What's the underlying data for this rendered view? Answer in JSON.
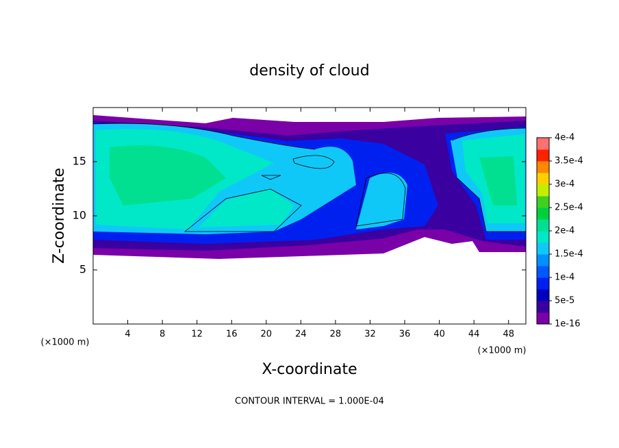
{
  "chart_data": {
    "type": "contour",
    "title": "density of cloud",
    "x_label": "X-coordinate",
    "y_label": "Z-coordinate",
    "x_unit": "(×1000 m)",
    "y_unit": "(×1000 m)",
    "note": "CONTOUR INTERVAL = 1.000E-04",
    "xlim": [
      0,
      50
    ],
    "ylim": [
      0,
      20
    ],
    "xticks": [
      4,
      8,
      12,
      16,
      20,
      24,
      28,
      32,
      36,
      40,
      44,
      48
    ],
    "yticks": [
      5,
      10,
      15
    ],
    "colorbar": {
      "lim": [
        1e-16,
        0.0004
      ],
      "ticks": [
        1e-16,
        {
          "value": 5e-05,
          "label": "5e-5"
        },
        {
          "value": 0.0001,
          "label": "1e-4"
        },
        {
          "value": 0.00015,
          "label": "1.5e-4"
        },
        {
          "value": 0.0002,
          "label": "2e-4"
        },
        {
          "value": 0.00025,
          "label": "2.5e-4"
        },
        {
          "value": 0.0003,
          "label": "3e-4"
        },
        {
          "value": 0.00035,
          "label": "3.5e-4"
        },
        {
          "value": 0.0004,
          "label": "4e-4"
        }
      ],
      "colors": [
        "#7a00a8",
        "#3a00a0",
        "#0000c0",
        "#0020f0",
        "#0058ff",
        "#0090ff",
        "#10c8f8",
        "#00e8c8",
        "#00e090",
        "#00d040",
        "#40d020",
        "#c0f000",
        "#ffd000",
        "#ff8800",
        "#ff2000",
        "#ff7070"
      ]
    }
  }
}
